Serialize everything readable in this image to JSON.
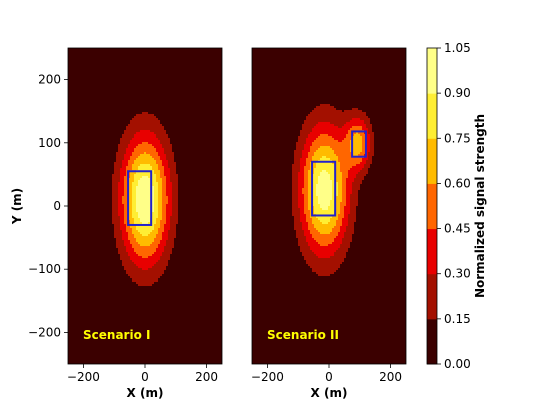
{
  "chart_data": {
    "type": "contour",
    "panels": [
      {
        "annotation": "Scenario I",
        "xlabel": "X (m)",
        "ylabel": "Y (m)",
        "xlim": [
          -250,
          250
        ],
        "ylim": [
          -250,
          250
        ],
        "xticks": [
          -200,
          0,
          200
        ],
        "yticks": [
          -200,
          -100,
          0,
          100,
          200
        ],
        "sources": [
          {
            "cx": 0,
            "cy": 10,
            "sx": 55,
            "sy": 70,
            "a": 1.05
          }
        ],
        "rectangles": [
          {
            "x0": -55,
            "x1": 20,
            "y0": -30,
            "y1": 55
          }
        ]
      },
      {
        "annotation": "Scenario II",
        "xlabel": "X (m)",
        "ylabel": "",
        "xlim": [
          -250,
          250
        ],
        "ylim": [
          -250,
          250
        ],
        "xticks": [
          -200,
          0,
          200
        ],
        "yticks": [],
        "sources": [
          {
            "cx": -15,
            "cy": 25,
            "sx": 55,
            "sy": 70,
            "a": 1.0
          },
          {
            "cx": 95,
            "cy": 100,
            "sx": 30,
            "sy": 30,
            "a": 0.62
          }
        ],
        "rectangles": [
          {
            "x0": -55,
            "x1": 20,
            "y0": -15,
            "y1": 70
          },
          {
            "x0": 75,
            "x1": 120,
            "y0": 78,
            "y1": 118
          }
        ]
      }
    ],
    "colorbar": {
      "label": "Normalized signal strength",
      "levels": [
        0.0,
        0.15,
        0.3,
        0.45,
        0.6,
        0.75,
        0.9,
        1.05
      ],
      "tick_labels": [
        "0.00",
        "0.15",
        "0.30",
        "0.45",
        "0.60",
        "0.75",
        "0.90",
        "1.05"
      ],
      "colors": [
        "#3b0000",
        "#a31000",
        "#e80000",
        "#ff6600",
        "#ffbb00",
        "#ffee33",
        "#ffff88",
        "#ffffdd"
      ]
    },
    "rect_color": "#2222cc",
    "annotation_color": "#ffff00"
  }
}
